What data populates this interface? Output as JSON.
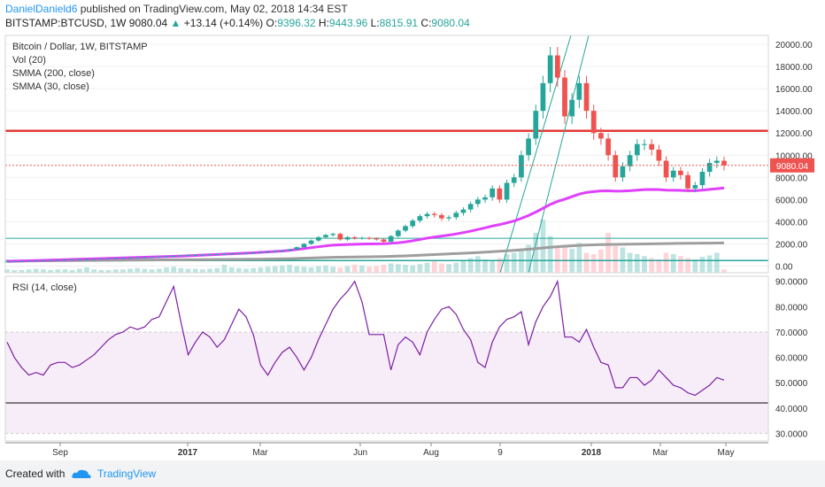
{
  "header": {
    "author": "DanielDanield6",
    "published": "published on TradingView.com, May 02, 2018 14:34 EST",
    "symbol": "BITSTAMP:BTCUSD, 1W",
    "last": "9080.04",
    "change": "+13.14 (+0.14%)",
    "o_label": "O:",
    "o_value": "9396.32",
    "h_label": "H:",
    "h_value": "9443.96",
    "l_label": "L:",
    "l_value": "8815.91",
    "c_label": "C:",
    "c_value": "9080.04"
  },
  "legend": {
    "title": "Bitcoin / Dollar, 1W, BITSTAMP",
    "vol": "Vol (20)",
    "smma200": "SMMA (200, close)",
    "smma30": "SMMA (30, close)"
  },
  "rsi_legend": "RSI (14, close)",
  "price_badge": "9080.04",
  "footer": {
    "created_with": "Created with",
    "brand": "TradingView"
  },
  "colors": {
    "up": "#26a69a",
    "down": "#ef5350",
    "smma30": "#e040fb",
    "smma200": "#9e9e9e",
    "hline": "#e53935",
    "rsi": "#7b1fa2"
  },
  "chart_data": [
    {
      "type": "candlestick",
      "title": "Bitcoin / Dollar, 1W, BITSTAMP",
      "y_ticks": [
        "20000.00",
        "18000.00",
        "16000.00",
        "14000.00",
        "12000.00",
        "10000.00",
        "8000.00",
        "6000.00",
        "4000.00",
        "2000.00",
        "0.00"
      ],
      "ylim": [
        -600,
        20800
      ],
      "x_ticks": [
        "Sep",
        "2017",
        "Mar",
        "Jun",
        "Aug",
        "9",
        "2018",
        "Mar",
        "May"
      ],
      "hlines": [
        12200,
        2500,
        500
      ],
      "series": [
        {
          "name": "price",
          "values": [
            400,
            420,
            440,
            470,
            500,
            520,
            540,
            560,
            590,
            600,
            610,
            620,
            640,
            660,
            700,
            720,
            740,
            760,
            780,
            790,
            800,
            850,
            900,
            920,
            960,
            990,
            1010,
            1030,
            1060,
            1080,
            1100,
            1120,
            1150,
            1180,
            1210,
            1250,
            1300,
            1350,
            1400,
            1500,
            1700,
            2000,
            2300,
            2600,
            2800,
            2900,
            2400,
            2600,
            2500,
            2550,
            2500,
            2400,
            2200,
            2700,
            3200,
            3600,
            4100,
            4500,
            4700,
            4600,
            4300,
            4400,
            4800,
            5100,
            5600,
            6000,
            6200,
            7000,
            6000,
            7500,
            8000,
            10000,
            11500,
            14000,
            16500,
            19000,
            17000,
            13500,
            15000,
            16500,
            14000,
            12000,
            11500,
            10000,
            8000,
            9000,
            10000,
            11000,
            11000,
            10500,
            9500,
            8000,
            8600,
            8200,
            7000,
            7300,
            8500,
            9300,
            9500,
            9080
          ]
        },
        {
          "name": "SMMA (30, close)",
          "values": [
            420,
            440,
            460,
            480,
            500,
            520,
            540,
            560,
            580,
            600,
            620,
            640,
            660,
            680,
            700,
            720,
            740,
            760,
            780,
            800,
            820,
            840,
            860,
            880,
            900,
            930,
            960,
            990,
            1020,
            1050,
            1080,
            1110,
            1140,
            1170,
            1200,
            1240,
            1280,
            1320,
            1360,
            1420,
            1500,
            1580,
            1660,
            1740,
            1820,
            1890,
            1920,
            1950,
            1970,
            1990,
            2000,
            2010,
            2020,
            2050,
            2100,
            2180,
            2280,
            2400,
            2520,
            2620,
            2700,
            2790,
            2900,
            3020,
            3150,
            3300,
            3450,
            3610,
            3740,
            3900,
            4070,
            4300,
            4560,
            4870,
            5210,
            5560,
            5830,
            6030,
            6260,
            6490,
            6640,
            6720,
            6780,
            6790,
            6760,
            6770,
            6800,
            6850,
            6900,
            6910,
            6900,
            6850,
            6840,
            6830,
            6800,
            6800,
            6850,
            6920,
            6980,
            7050
          ]
        },
        {
          "name": "SMMA (200, close)",
          "values": [
            450,
            455,
            460,
            465,
            470,
            475,
            480,
            485,
            490,
            495,
            500,
            505,
            510,
            515,
            520,
            525,
            530,
            535,
            540,
            545,
            550,
            555,
            560,
            565,
            570,
            575,
            580,
            585,
            590,
            595,
            600,
            605,
            610,
            615,
            620,
            630,
            640,
            650,
            660,
            670,
            690,
            710,
            730,
            750,
            770,
            790,
            800,
            810,
            820,
            830,
            840,
            850,
            860,
            880,
            900,
            920,
            950,
            980,
            1010,
            1040,
            1070,
            1100,
            1130,
            1160,
            1190,
            1220,
            1260,
            1300,
            1340,
            1380,
            1420,
            1470,
            1520,
            1580,
            1640,
            1700,
            1750,
            1790,
            1830,
            1870,
            1900,
            1920,
            1940,
            1950,
            1960,
            1970,
            1980,
            1990,
            2000,
            2010,
            2020,
            2030,
            2040,
            2050,
            2055,
            2060,
            2065,
            2070,
            2075,
            2080
          ]
        }
      ],
      "volume": [
        5,
        4,
        4,
        5,
        6,
        5,
        4,
        5,
        5,
        4,
        6,
        8,
        5,
        4,
        4,
        5,
        5,
        6,
        7,
        6,
        5,
        6,
        8,
        9,
        7,
        6,
        6,
        5,
        6,
        7,
        12,
        8,
        7,
        6,
        7,
        8,
        9,
        10,
        11,
        12,
        10,
        9,
        8,
        10,
        11,
        9,
        8,
        10,
        12,
        11,
        9,
        10,
        12,
        14,
        13,
        12,
        11,
        13,
        15,
        18,
        14,
        13,
        15,
        18,
        22,
        25,
        20,
        18,
        22,
        28,
        30,
        35,
        42,
        60,
        80,
        55,
        40,
        38,
        36,
        45,
        30,
        28,
        35,
        60,
        40,
        38,
        30,
        28,
        25,
        22,
        20,
        30,
        28,
        25,
        22,
        20,
        24,
        26,
        30,
        5
      ]
    },
    {
      "type": "line",
      "title": "RSI (14, close)",
      "y_ticks": [
        "90.0000",
        "80.0000",
        "70.0000",
        "60.0000",
        "50.0000",
        "40.0000",
        "30.0000"
      ],
      "ylim": [
        27,
        92
      ],
      "bands": [
        70,
        30
      ],
      "hline": 42,
      "series": [
        {
          "name": "RSI (14, close)",
          "values": [
            66,
            60,
            56,
            53,
            54,
            53,
            57,
            58,
            58,
            56,
            57,
            59,
            61,
            64,
            67,
            69,
            70,
            72,
            71,
            72,
            75,
            76,
            82,
            88,
            74,
            61,
            66,
            70,
            68,
            64,
            67,
            73,
            79,
            76,
            69,
            57,
            53,
            58,
            62,
            64,
            60,
            55,
            60,
            67,
            73,
            79,
            83,
            86,
            90,
            82,
            69,
            69,
            69,
            55,
            65,
            68,
            66,
            61,
            70,
            75,
            79,
            80,
            77,
            71,
            67,
            58,
            56,
            66,
            72,
            75,
            76,
            78,
            65,
            74,
            80,
            84,
            90,
            68,
            68,
            66,
            71,
            64,
            58,
            57,
            48,
            48,
            52,
            52,
            49,
            51,
            55,
            52,
            49,
            48,
            46,
            45,
            47,
            49,
            52,
            51
          ]
        }
      ]
    }
  ]
}
